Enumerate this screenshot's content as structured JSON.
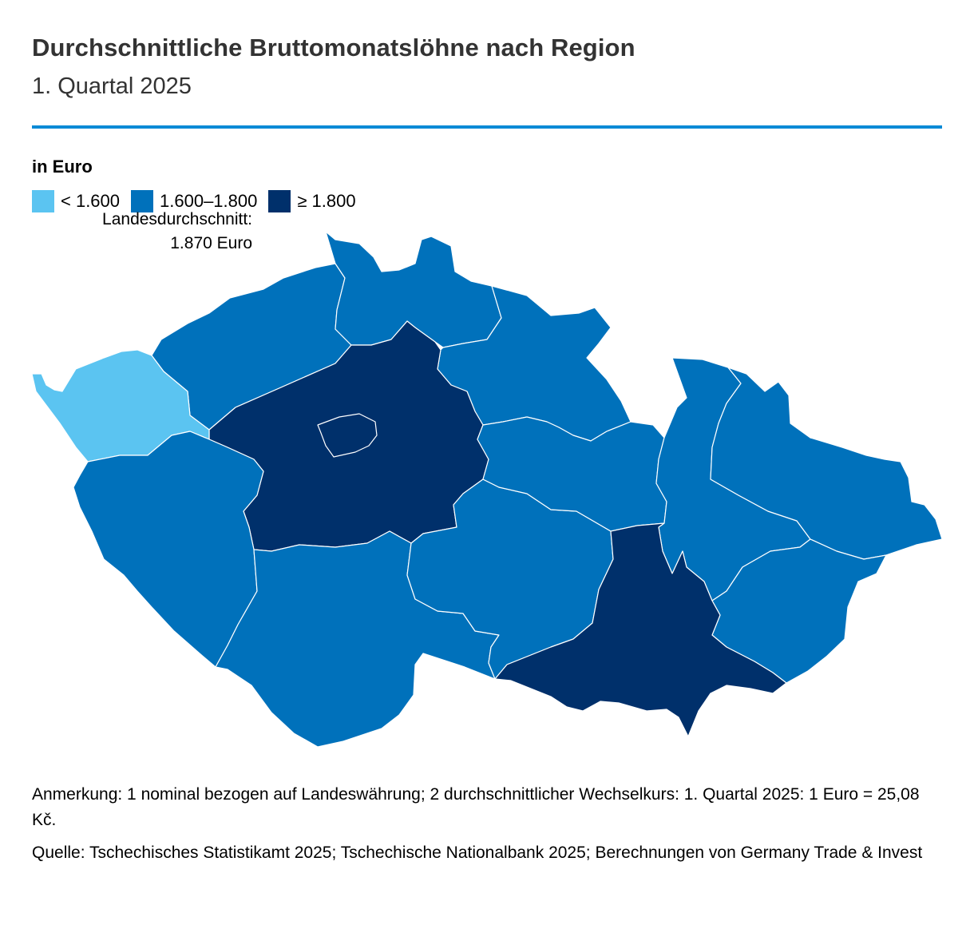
{
  "header": {
    "title": "Durchschnittliche Bruttomonatslöhne nach Region",
    "subtitle": "1. Quartal 2025",
    "accent_color": "#0a8ad6"
  },
  "unit_label": "in Euro",
  "legend": {
    "items": [
      {
        "label": "< 1.600",
        "color": "#5bc4f1"
      },
      {
        "label": "1.600–1.800",
        "color": "#0071bb"
      },
      {
        "label": "≥ 1.800",
        "color": "#00306b"
      }
    ]
  },
  "national_average": {
    "line1": "Landesdurchschnitt:",
    "line2": "1.870 Euro"
  },
  "map": {
    "country": "Czech Republic",
    "border_color": "#ffffff",
    "regions": [
      {
        "id": "karlovy-vary",
        "class": "< 1.600",
        "color": "#5bc4f1"
      },
      {
        "id": "usti",
        "class": "1.600–1.800",
        "color": "#0071bb"
      },
      {
        "id": "liberec",
        "class": "1.600–1.800",
        "color": "#0071bb"
      },
      {
        "id": "hradec-kralove",
        "class": "1.600–1.800",
        "color": "#0071bb"
      },
      {
        "id": "central-bohemia",
        "class": "≥ 1.800",
        "color": "#00306b"
      },
      {
        "id": "prague",
        "class": "≥ 1.800",
        "color": "#00306b"
      },
      {
        "id": "plzen",
        "class": "1.600–1.800",
        "color": "#0071bb"
      },
      {
        "id": "south-bohemia",
        "class": "1.600–1.800",
        "color": "#0071bb"
      },
      {
        "id": "vysocina",
        "class": "1.600–1.800",
        "color": "#0071bb"
      },
      {
        "id": "pardubice",
        "class": "1.600–1.800",
        "color": "#0071bb"
      },
      {
        "id": "olomouc",
        "class": "1.600–1.800",
        "color": "#0071bb"
      },
      {
        "id": "moravian-silesian",
        "class": "1.600–1.800",
        "color": "#0071bb"
      },
      {
        "id": "zlin",
        "class": "1.600–1.800",
        "color": "#0071bb"
      },
      {
        "id": "south-moravia",
        "class": "≥ 1.800",
        "color": "#00306b"
      }
    ]
  },
  "footer": {
    "note": "Anmerkung: 1 nominal bezogen auf Landeswährung; 2 durchschnittlicher Wechselkurs: 1. Quartal 2025: 1 Euro = 25,08 Kč.",
    "source": "Quelle: Tschechisches Statistikamt 2025; Tschechische Nationalbank 2025; Berechnungen von Germany Trade & Invest"
  }
}
